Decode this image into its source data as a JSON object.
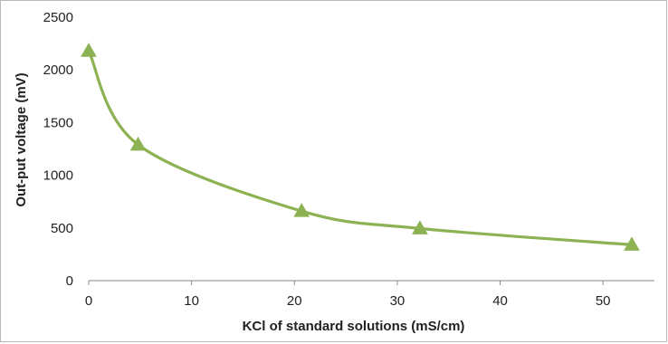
{
  "chart_data": {
    "type": "line",
    "title": "",
    "xlabel": "KCl of standard solutions (mS/cm)",
    "ylabel": "Out-put voltage (mV)",
    "xlim": [
      0,
      55
    ],
    "ylim": [
      0,
      2500
    ],
    "xticks": [
      0,
      10,
      20,
      30,
      40,
      50
    ],
    "yticks": [
      0,
      500,
      1000,
      1500,
      2000,
      2500
    ],
    "grid": false,
    "legend": "none",
    "marker": "triangle",
    "smooth": true,
    "color": "#8db254",
    "series": [
      {
        "x": [
          0,
          4.8,
          20.7,
          32.2,
          52.8
        ],
        "y": [
          2180,
          1290,
          660,
          495,
          340
        ]
      }
    ]
  }
}
